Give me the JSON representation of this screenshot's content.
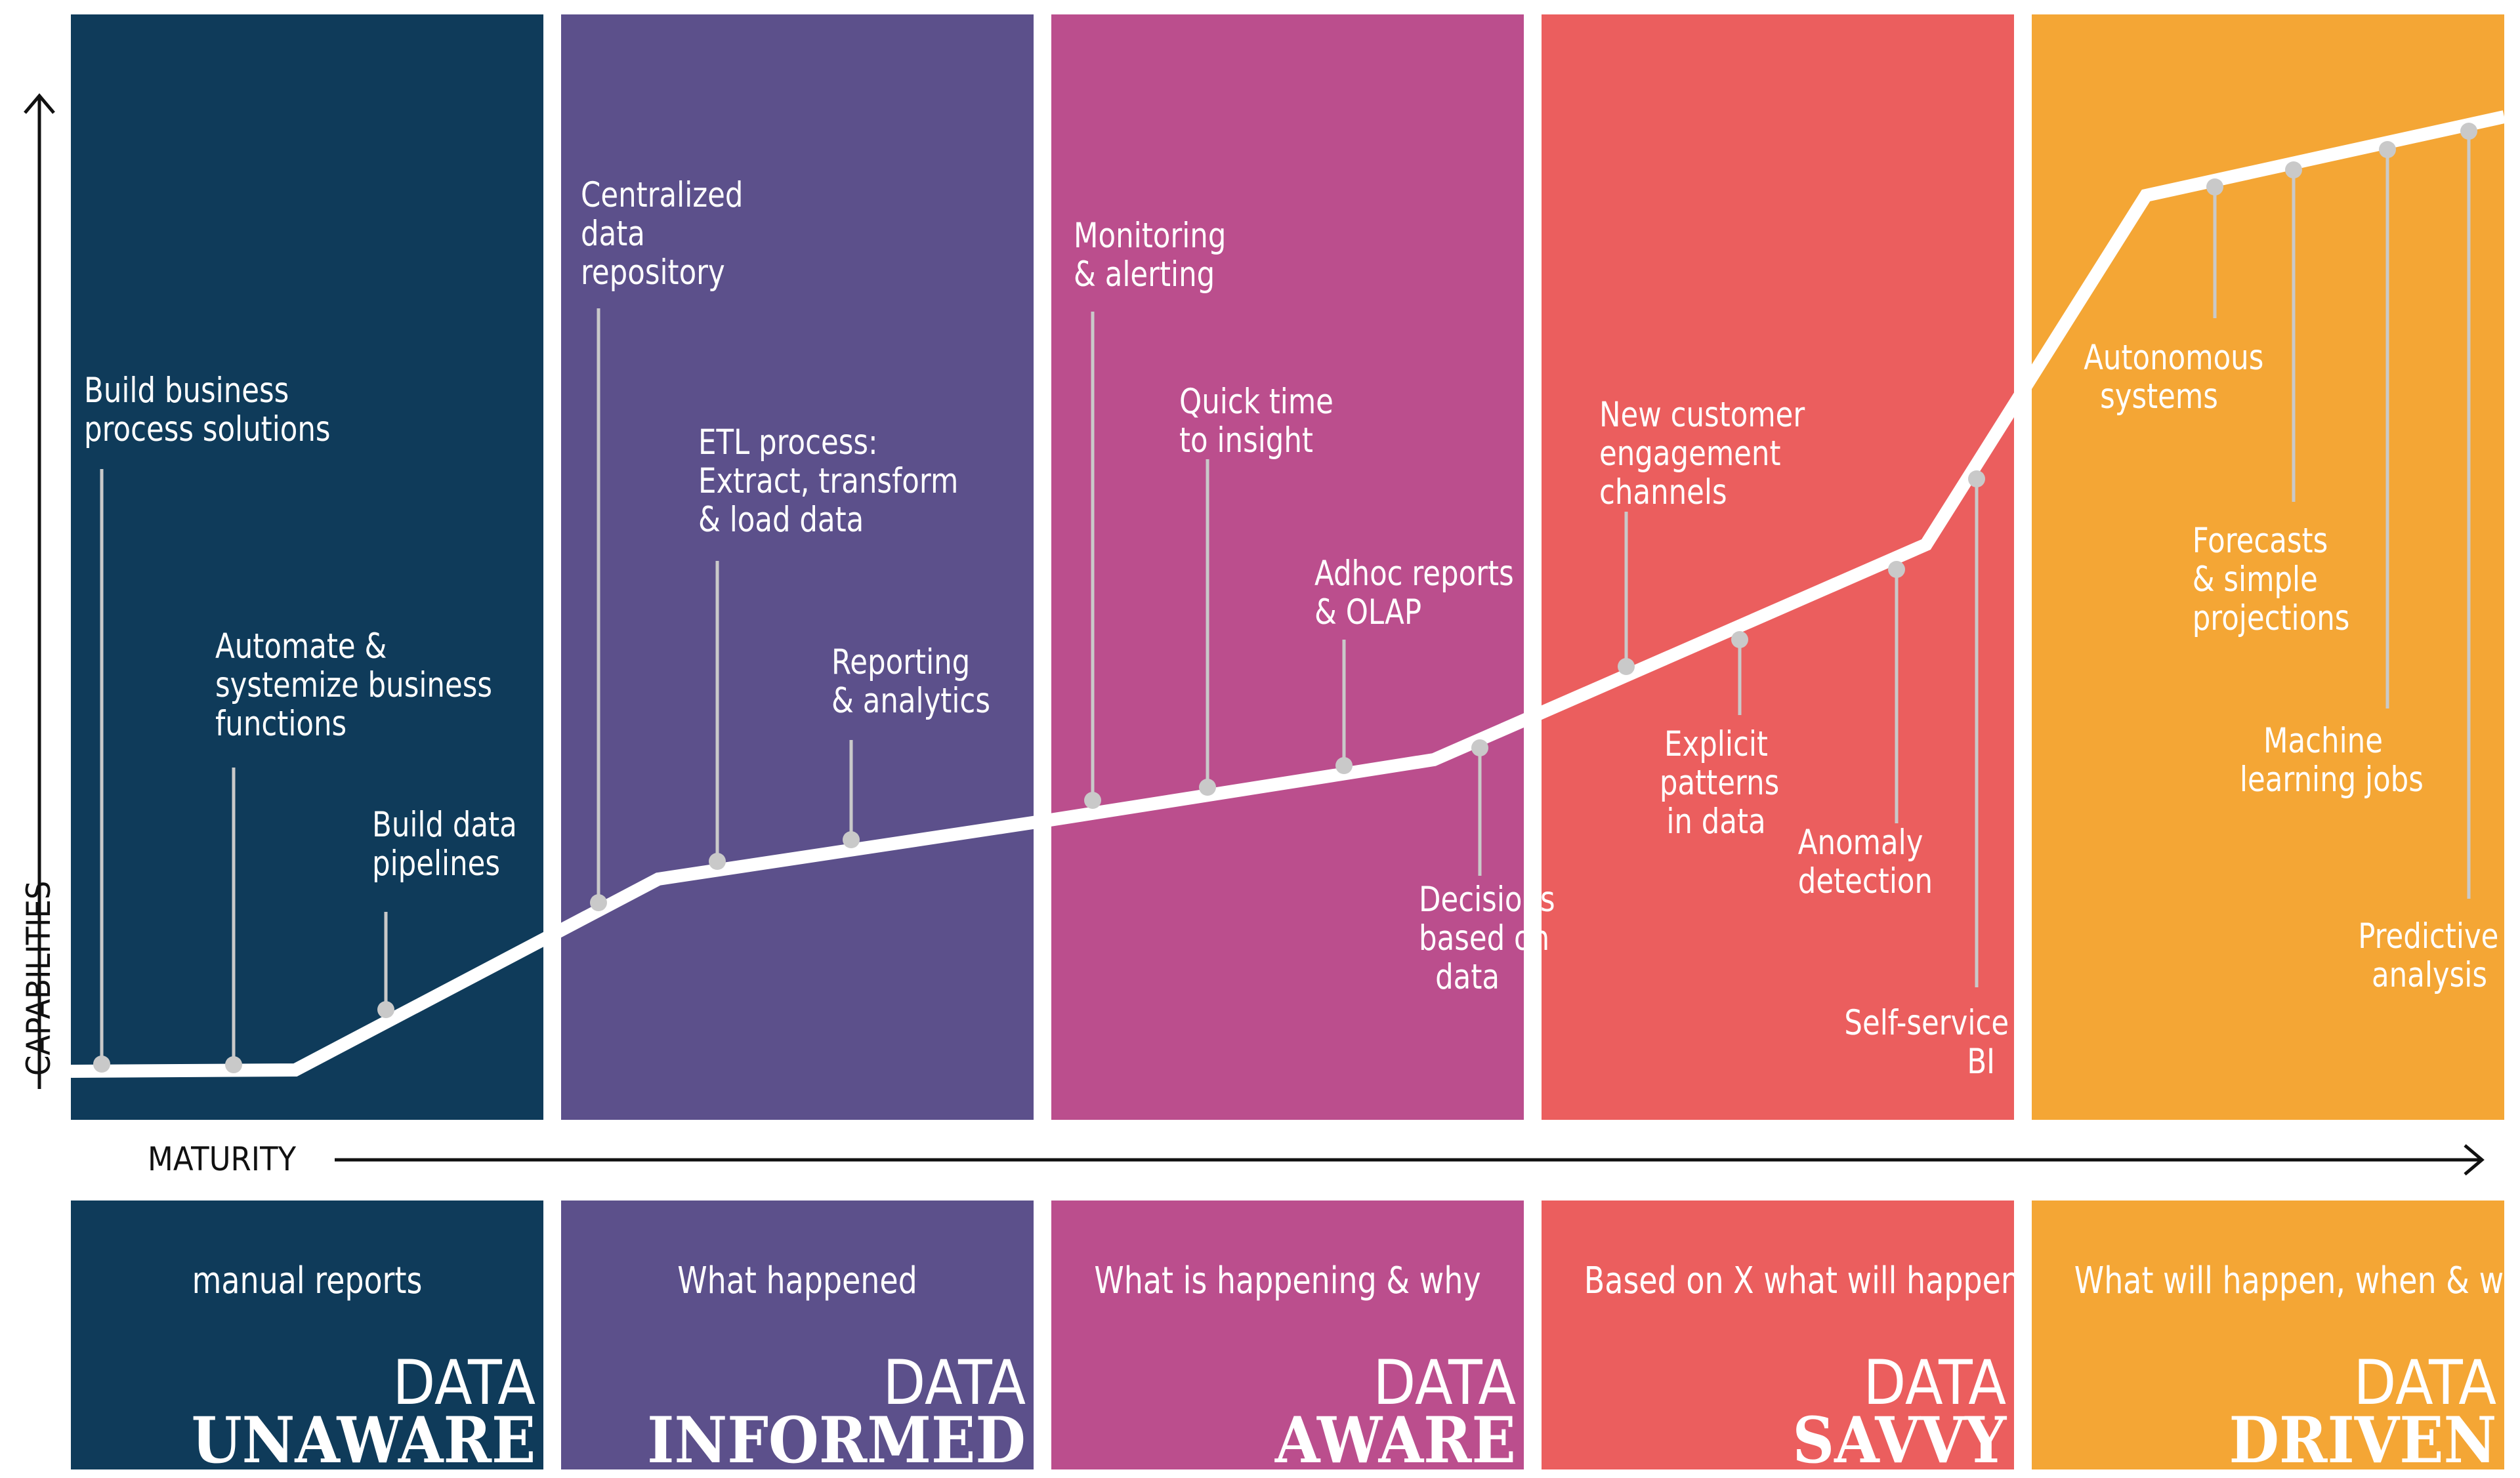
{
  "colors": {
    "unaware": "#0f3b5a",
    "informed": "#5c508b",
    "aware": "#bb4e8d",
    "savvy": "#eb5e5e",
    "driven": "#f4a635",
    "line": "#ffffff",
    "stem": "#c9c9c9",
    "axis": "#111111"
  },
  "axes": {
    "y_label": "CAPABILITIES",
    "x_label": "MATURITY"
  },
  "stages": [
    {
      "id": "unaware",
      "description": "manual reports",
      "word1": "DATA",
      "word2": "UNAWARE"
    },
    {
      "id": "informed",
      "description": "What happened",
      "word1": "DATA",
      "word2": "INFORMED"
    },
    {
      "id": "aware",
      "description": "What is happening & why",
      "word1": "DATA",
      "word2": "AWARE"
    },
    {
      "id": "savvy",
      "description": "Based on X what will happen",
      "word1": "DATA",
      "word2": "SAVVY"
    },
    {
      "id": "driven",
      "description": "What will happen, when & why",
      "word1": "DATA",
      "word2": "DRIVEN"
    }
  ],
  "milestones": [
    {
      "text": "Build business\nprocess solutions"
    },
    {
      "text": "Automate &\nsystemize business\nfunctions"
    },
    {
      "text": "Build data\npipelines"
    },
    {
      "text": "Centralized\ndata\nrepository"
    },
    {
      "text": "ETL process:\nExtract, transform\n& load data"
    },
    {
      "text": "Reporting\n& analytics"
    },
    {
      "text": "Monitoring\n& alerting"
    },
    {
      "text": "Quick time\nto insight"
    },
    {
      "text": "Adhoc reports\n& OLAP"
    },
    {
      "text": "Decisions\nbased on\ndata"
    },
    {
      "text": "New customer\nengagement\nchannels"
    },
    {
      "text": "Explicit\npatterns\nin data"
    },
    {
      "text": "Anomaly\ndetection"
    },
    {
      "text": "Self-service\nBI"
    },
    {
      "text": "Autonomous\nsystems"
    },
    {
      "text": "Forecasts\n& simple\nprojections"
    },
    {
      "text": "Machine\nlearning jobs"
    },
    {
      "text": "Predictive\nanalysis"
    }
  ]
}
